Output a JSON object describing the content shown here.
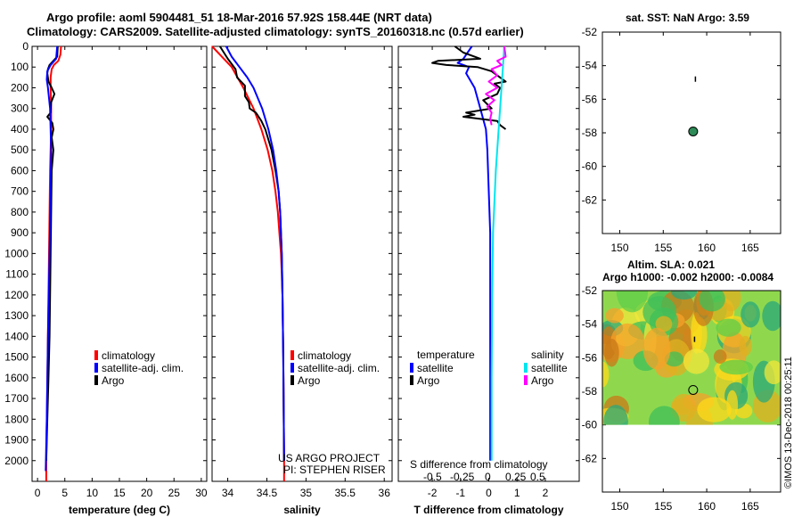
{
  "title": {
    "line1": "Argo profile: aoml 5904481_51 18-Mar-2016 57.92S 158.44E (NRT data)",
    "line2": "Climatology: CARS2009. Satellite-adjusted climatology: synTS_20160318.nc (0.57d earlier)"
  },
  "credits": {
    "project": "US ARGO PROJECT",
    "pi": "PI: STEPHEN RISER",
    "imos": "©IMOS 13-Dec-2018 00:25:11"
  },
  "map_titles": {
    "sst": "sat. SST: NaN Argo: 3.59",
    "sla": "Altim. SLA: 0.021",
    "h": "Argo h1000: -0.002 h2000: -0.0084"
  },
  "legends": {
    "climatology": "climatology",
    "satellite_adj": "satellite-adj. clim.",
    "argo": "Argo",
    "temperature": "temperature",
    "salinity": "salinity",
    "satellite": "satellite",
    "s_diff": "S difference from climatology",
    "s_ticks": [
      "-0.5",
      "-0.25",
      "0",
      "0.25",
      "0.5"
    ]
  },
  "colors": {
    "climatology": "#ff0000",
    "satellite_adj": "#0000ff",
    "argo": "#000000",
    "sat_sal": "#00e5ee",
    "argo_sal": "#ff00ff"
  },
  "chart_data": [
    {
      "type": "line",
      "xlabel": "temperature (deg C)",
      "ylabel": "",
      "xlim": [
        -1,
        31
      ],
      "ylim": [
        2100,
        0
      ],
      "xticks": [
        0,
        5,
        10,
        15,
        20,
        25,
        30
      ],
      "yticks": [
        0,
        100,
        200,
        300,
        400,
        500,
        600,
        700,
        800,
        900,
        1000,
        1100,
        1200,
        1300,
        1400,
        1500,
        1600,
        1700,
        1800,
        1900,
        2000
      ],
      "series": [
        {
          "name": "climatology",
          "color": "#ff0000",
          "width": 2,
          "depth": [
            0,
            40,
            70,
            90,
            110,
            150,
            200,
            300,
            400,
            600,
            800,
            1000,
            1400,
            2000,
            2100
          ],
          "values": [
            4.3,
            4.2,
            3.8,
            3.0,
            2.6,
            2.4,
            2.4,
            2.5,
            2.5,
            2.3,
            2.2,
            2.1,
            1.9,
            1.6,
            1.6
          ]
        },
        {
          "name": "Argo",
          "color": "#000000",
          "width": 2,
          "depth": [
            0,
            50,
            90,
            110,
            130,
            170,
            200,
            230,
            270,
            320,
            340,
            370,
            400,
            440,
            500,
            600,
            800,
            1000,
            1200,
            1400,
            1600,
            1800,
            2000
          ],
          "values": [
            3.7,
            3.6,
            2.2,
            1.9,
            1.8,
            2.0,
            2.6,
            3.1,
            2.5,
            2.4,
            1.8,
            2.7,
            2.9,
            2.6,
            2.9,
            2.6,
            2.5,
            2.4,
            2.3,
            2.2,
            2.0,
            1.8,
            1.6
          ]
        },
        {
          "name": "satellite-adj. clim.",
          "color": "#0000ff",
          "width": 2,
          "depth": [
            0,
            60,
            90,
            120,
            160,
            200,
            300,
            500,
            700,
            1000,
            1400,
            1800,
            2050
          ],
          "values": [
            3.6,
            3.4,
            2.4,
            1.8,
            1.7,
            1.9,
            2.3,
            2.5,
            2.4,
            2.2,
            1.9,
            1.7,
            1.5
          ]
        }
      ]
    },
    {
      "type": "line",
      "xlabel": "salinity",
      "xlim": [
        33.8,
        36.1
      ],
      "ylim": [
        2100,
        0
      ],
      "xticks": [
        34,
        34.5,
        35,
        35.5,
        36
      ],
      "xticklabels": [
        "34",
        "34.5",
        "35",
        "35.5",
        "36"
      ],
      "series": [
        {
          "name": "climatology",
          "color": "#ff0000",
          "width": 2,
          "depth": [
            0,
            100,
            200,
            300,
            400,
            500,
            600,
            700,
            800,
            900,
            1000,
            1100,
            1200,
            1500,
            2000,
            2100
          ],
          "values": [
            33.8,
            34.05,
            34.2,
            34.33,
            34.43,
            34.51,
            34.57,
            34.61,
            34.64,
            34.66,
            34.68,
            34.69,
            34.7,
            34.71,
            34.72,
            34.72
          ]
        },
        {
          "name": "Argo",
          "color": "#000000",
          "width": 2,
          "depth": [
            0,
            60,
            110,
            150,
            190,
            240,
            270,
            300,
            320,
            360,
            400,
            500,
            600,
            700,
            800,
            1000,
            1200,
            1500,
            2000
          ],
          "values": [
            33.9,
            34.0,
            34.1,
            34.12,
            34.22,
            34.22,
            34.27,
            34.28,
            34.36,
            34.43,
            34.48,
            34.56,
            34.61,
            34.65,
            34.67,
            34.69,
            34.7,
            34.71,
            34.72
          ]
        },
        {
          "name": "satellite-adj. clim.",
          "color": "#0000ff",
          "width": 2,
          "depth": [
            0,
            50,
            100,
            150,
            200,
            300,
            400,
            500,
            600,
            700,
            800,
            900,
            1000,
            1200,
            1500,
            2000
          ],
          "values": [
            33.98,
            34.05,
            34.15,
            34.25,
            34.33,
            34.44,
            34.52,
            34.58,
            34.62,
            34.65,
            34.67,
            34.68,
            34.69,
            34.7,
            34.71,
            34.72
          ]
        }
      ]
    },
    {
      "type": "line",
      "xlabel": "T difference from climatology",
      "xlim": [
        -3.2,
        3.2
      ],
      "ylim": [
        2100,
        0
      ],
      "xticks": [
        -2,
        -1,
        0,
        1,
        2
      ],
      "series": [
        {
          "name": "satellite (temperature)",
          "color": "#0000ff",
          "width": 2,
          "depth": [
            0,
            60,
            80,
            100,
            130,
            200,
            300,
            400,
            500,
            700,
            900,
            1200,
            1500,
            2000
          ],
          "values": [
            -0.6,
            -0.9,
            -1.1,
            -0.7,
            -0.8,
            -0.5,
            -0.3,
            -0.1,
            -0.05,
            0.0,
            0.05,
            0.05,
            0.05,
            0.05
          ]
        },
        {
          "name": "Argo (temperature)",
          "color": "#000000",
          "width": 2,
          "depth": [
            0,
            30,
            50,
            60,
            70,
            80,
            90,
            100,
            120,
            150,
            170,
            180,
            200,
            230,
            260,
            300,
            320,
            330,
            340,
            360,
            380,
            400
          ],
          "values": [
            -1.2,
            -0.9,
            -0.5,
            -0.3,
            -1.8,
            -2.0,
            -1.5,
            -0.4,
            0.1,
            0.4,
            0.6,
            0.2,
            0.4,
            0.3,
            -0.2,
            0.1,
            -0.8,
            -0.5,
            -0.9,
            0.3,
            0.4,
            0.6
          ]
        },
        {
          "name": "satellite (salinity)",
          "color": "#00e5ee",
          "width": 2,
          "depth": [
            0,
            100,
            200,
            300,
            400,
            600,
            900,
            1200,
            1600,
            2000
          ],
          "values": [
            0.55,
            0.5,
            0.45,
            0.4,
            0.35,
            0.25,
            0.15,
            0.12,
            0.1,
            0.1
          ]
        },
        {
          "name": "Argo (salinity)",
          "color": "#ff00ff",
          "width": 2,
          "depth": [
            0,
            50,
            70,
            90,
            110,
            140,
            170,
            200,
            230,
            260,
            290,
            320,
            350,
            380
          ],
          "values": [
            0.55,
            0.6,
            0.3,
            0.45,
            0.1,
            0.3,
            0.0,
            0.3,
            -0.1,
            0.2,
            -0.05,
            0.1,
            0.05,
            0.1
          ]
        }
      ]
    },
    {
      "type": "scatter",
      "title": "sat. SST: NaN Argo: 3.59",
      "xlim": [
        148,
        168.5
      ],
      "ylim": [
        -64,
        -52
      ],
      "xticks": [
        150,
        155,
        160,
        165
      ],
      "yticks": [
        -52,
        -54,
        -56,
        -58,
        -60,
        -62
      ],
      "points": [
        {
          "lon": 158.44,
          "lat": -57.92,
          "marker": "circle",
          "color": "#2e8b57"
        }
      ],
      "marks": [
        {
          "lon": 158.7,
          "lat": -54.8
        }
      ]
    },
    {
      "type": "heatmap",
      "title": "Argo h1000: -0.002 h2000: -0.0084",
      "xlim": [
        148,
        168.5
      ],
      "ylim": [
        -64,
        -52
      ],
      "xticks": [
        150,
        155,
        160,
        165
      ],
      "yticks": [
        -52,
        -54,
        -56,
        -58,
        -60,
        -62
      ],
      "field_lat_range": [
        -60,
        -52
      ],
      "points": [
        {
          "lon": 158.44,
          "lat": -57.92,
          "marker": "circle"
        }
      ],
      "marks": [
        {
          "lon": 158.6,
          "lat": -54.9
        }
      ]
    }
  ]
}
